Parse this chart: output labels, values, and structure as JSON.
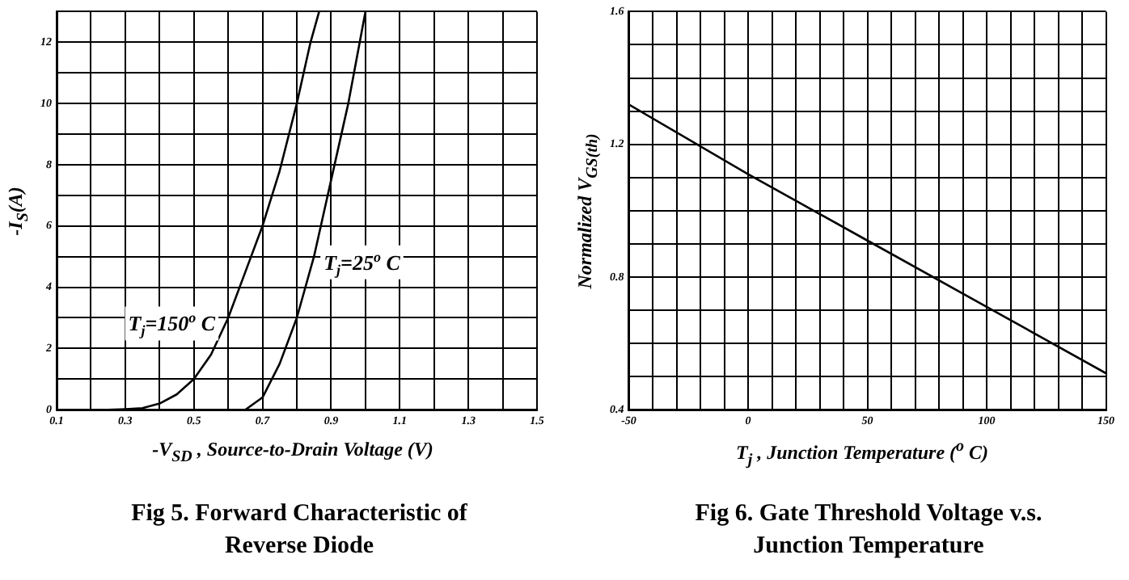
{
  "chart_data": [
    {
      "type": "line",
      "title": "Fig 5. Forward Characteristic of Reverse Diode",
      "xlabel": "-V$_{SD}$ , Source-to-Drain Voltage (V)",
      "ylabel": "-I$_{S}$(A)",
      "xlim": [
        0.1,
        1.5
      ],
      "ylim": [
        0,
        13
      ],
      "xticks": [
        0.1,
        {
          "value": 0.2,
          "label": null
        },
        0.3,
        {
          "value": 0.4,
          "label": null
        },
        0.5,
        {
          "value": 0.6,
          "label": null
        },
        0.7,
        {
          "value": 0.8,
          "label": null
        },
        0.9,
        {
          "value": 1.0,
          "label": null
        },
        1.1,
        {
          "value": 1.2,
          "label": null
        },
        1.3,
        {
          "value": 1.4,
          "label": null
        },
        1.5
      ],
      "yticks": [
        0,
        {
          "value": 1,
          "label": null
        },
        2,
        {
          "value": 3,
          "label": null
        },
        4,
        {
          "value": 5,
          "label": null
        },
        6,
        {
          "value": 7,
          "label": null
        },
        8,
        {
          "value": 9,
          "label": null
        },
        10,
        {
          "value": 11,
          "label": null
        },
        12,
        {
          "value": 13,
          "label": null
        }
      ],
      "grid": true,
      "legend": false,
      "series": [
        {
          "name": "T$_{j}$=150$^{o}$ C",
          "color": "#000000",
          "x": [
            0.25,
            0.3,
            0.35,
            0.4,
            0.45,
            0.5,
            0.55,
            0.6,
            0.65,
            0.7,
            0.75,
            0.8,
            0.84,
            0.865
          ],
          "values": [
            0,
            0.02,
            0.05,
            0.2,
            0.5,
            1,
            1.8,
            3,
            4.5,
            6,
            7.8,
            10,
            12,
            13
          ]
        },
        {
          "name": "T$_{j}$=25$^{o}$ C",
          "color": "#000000",
          "x": [
            0.65,
            0.7,
            0.75,
            0.8,
            0.85,
            0.9,
            0.95,
            0.975,
            1.0
          ],
          "values": [
            0,
            0.4,
            1.5,
            3,
            5,
            7.5,
            10,
            11.5,
            13
          ]
        }
      ]
    },
    {
      "type": "line",
      "title": "Fig 6. Gate Threshold Voltage v.s. Junction Temperature",
      "xlabel": "T$_{j}$ , Junction Temperature ($^{o}$ C)",
      "ylabel": "Normalized  V$_{GS(th)}$",
      "xlim": [
        -50,
        150
      ],
      "ylim": [
        0.4,
        1.6
      ],
      "xticks": [
        -50,
        {
          "value": -40,
          "label": null
        },
        {
          "value": -30,
          "label": null
        },
        {
          "value": -20,
          "label": null
        },
        {
          "value": -10,
          "label": null
        },
        0,
        {
          "value": 10,
          "label": null
        },
        {
          "value": 20,
          "label": null
        },
        {
          "value": 30,
          "label": null
        },
        {
          "value": 40,
          "label": null
        },
        50,
        {
          "value": 60,
          "label": null
        },
        {
          "value": 70,
          "label": null
        },
        {
          "value": 80,
          "label": null
        },
        {
          "value": 90,
          "label": null
        },
        100,
        {
          "value": 110,
          "label": null
        },
        {
          "value": 120,
          "label": null
        },
        {
          "value": 130,
          "label": null
        },
        {
          "value": 140,
          "label": null
        },
        150
      ],
      "yticks": [
        0.4,
        {
          "value": 0.5,
          "label": null
        },
        {
          "value": 0.6,
          "label": null
        },
        {
          "value": 0.7,
          "label": null
        },
        0.8,
        {
          "value": 0.9,
          "label": null
        },
        {
          "value": 1.0,
          "label": null
        },
        {
          "value": 1.1,
          "label": null
        },
        1.2,
        {
          "value": 1.3,
          "label": null
        },
        {
          "value": 1.4,
          "label": null
        },
        {
          "value": 1.5,
          "label": null
        },
        1.6
      ],
      "grid": true,
      "legend": false,
      "series": [
        {
          "color": "#000000",
          "x": [
            -50,
            0,
            50,
            100,
            150
          ],
          "values": [
            1.32,
            1.11,
            0.91,
            0.71,
            0.51
          ]
        }
      ]
    }
  ]
}
